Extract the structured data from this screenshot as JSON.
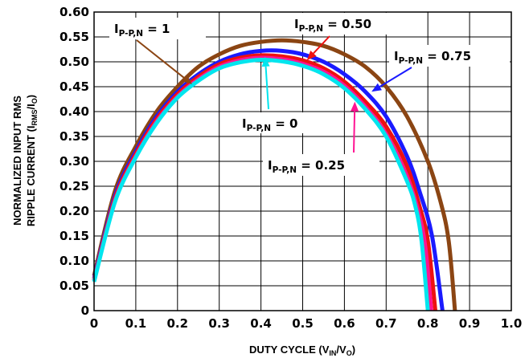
{
  "chart_data": {
    "type": "line",
    "title": "",
    "xlabel": {
      "main": "DUTY CYCLE (V",
      "sub1": "IN",
      "mid": "/V",
      "sub2": "O",
      "end": ")"
    },
    "ylabel": {
      "line1": "NORMALIZED INPUT RMS",
      "line2_main": "RIPPLE CURRENT (I",
      "line2_sub1": "RMS",
      "line2_mid": "/I",
      "line2_sub2": "O",
      "line2_end": ")"
    },
    "xlim": [
      0,
      1.0
    ],
    "ylim": [
      0,
      0.6
    ],
    "x_ticks": [
      "0",
      "0.1",
      "0.2",
      "0.3",
      "0.4",
      "0.5",
      "0.6",
      "0.7",
      "0.8",
      "0.9",
      "1.0"
    ],
    "y_ticks": [
      "0",
      "0.05",
      "0.10",
      "0.15",
      "0.20",
      "0.25",
      "0.30",
      "0.35",
      "0.40",
      "0.45",
      "0.50",
      "0.55",
      "0.60"
    ],
    "grid": true,
    "series": [
      {
        "color": "#8B4513",
        "x": [
          0,
          0.05,
          0.1,
          0.15,
          0.2,
          0.25,
          0.3,
          0.35,
          0.4,
          0.45,
          0.5,
          0.55,
          0.6,
          0.65,
          0.7,
          0.75,
          0.8,
          0.83,
          0.85,
          0.865
        ],
        "y": [
          0.07,
          0.24,
          0.33,
          0.4,
          0.45,
          0.49,
          0.515,
          0.532,
          0.54,
          0.543,
          0.54,
          0.532,
          0.515,
          0.49,
          0.45,
          0.39,
          0.3,
          0.22,
          0.14,
          0.0
        ]
      },
      {
        "color": "#1a1aff",
        "x": [
          0,
          0.05,
          0.1,
          0.15,
          0.2,
          0.25,
          0.3,
          0.35,
          0.4,
          0.45,
          0.5,
          0.55,
          0.6,
          0.65,
          0.7,
          0.75,
          0.78,
          0.81,
          0.835
        ],
        "y": [
          0.065,
          0.23,
          0.32,
          0.39,
          0.44,
          0.475,
          0.5,
          0.515,
          0.522,
          0.522,
          0.515,
          0.5,
          0.475,
          0.44,
          0.39,
          0.31,
          0.24,
          0.15,
          0.0
        ]
      },
      {
        "color": "#ee1111",
        "x": [
          0,
          0.05,
          0.1,
          0.15,
          0.2,
          0.25,
          0.3,
          0.35,
          0.4,
          0.45,
          0.5,
          0.55,
          0.6,
          0.65,
          0.7,
          0.75,
          0.78,
          0.8,
          0.818
        ],
        "y": [
          0.062,
          0.225,
          0.315,
          0.385,
          0.435,
          0.47,
          0.495,
          0.508,
          0.513,
          0.511,
          0.503,
          0.487,
          0.46,
          0.42,
          0.37,
          0.29,
          0.21,
          0.14,
          0.0
        ]
      },
      {
        "color": "#ff1493",
        "x": [
          0,
          0.05,
          0.1,
          0.15,
          0.2,
          0.25,
          0.3,
          0.35,
          0.4,
          0.45,
          0.5,
          0.55,
          0.6,
          0.65,
          0.7,
          0.75,
          0.78,
          0.795,
          0.808
        ],
        "y": [
          0.06,
          0.22,
          0.31,
          0.38,
          0.43,
          0.465,
          0.49,
          0.503,
          0.508,
          0.505,
          0.496,
          0.48,
          0.452,
          0.41,
          0.355,
          0.27,
          0.19,
          0.12,
          0.0
        ]
      },
      {
        "color": "#00e5ee",
        "x": [
          0,
          0.05,
          0.1,
          0.15,
          0.2,
          0.25,
          0.3,
          0.35,
          0.4,
          0.45,
          0.5,
          0.55,
          0.6,
          0.65,
          0.7,
          0.75,
          0.77,
          0.785,
          0.8
        ],
        "y": [
          0.058,
          0.218,
          0.308,
          0.377,
          0.428,
          0.462,
          0.487,
          0.499,
          0.504,
          0.501,
          0.492,
          0.475,
          0.447,
          0.405,
          0.35,
          0.26,
          0.21,
          0.14,
          0.0
        ]
      }
    ],
    "annotations": [
      {
        "name": "annotation-ipp-1",
        "color": "#8B4513",
        "main": "I",
        "sub": "P-P,N",
        "rest": " = 1",
        "point": [
          0.235,
          0.455
        ]
      },
      {
        "name": "annotation-ipp-050",
        "color": "#ee1111",
        "main": "I",
        "sub": "P-P,N",
        "rest": " = 0.50",
        "point": [
          0.51,
          0.503
        ]
      },
      {
        "name": "annotation-ipp-075",
        "color": "#1a1aff",
        "main": "I",
        "sub": "P-P,N",
        "rest": " = 0.75",
        "point": [
          0.665,
          0.44
        ]
      },
      {
        "name": "annotation-ipp-0",
        "color": "#00e5ee",
        "main": "I",
        "sub": "P-P,N",
        "rest": " = 0",
        "point": [
          0.41,
          0.51
        ]
      },
      {
        "name": "annotation-ipp-025",
        "color": "#ff1493",
        "main": "I",
        "sub": "P-P,N",
        "rest": " = 0.25",
        "point": [
          0.625,
          0.42
        ]
      }
    ]
  }
}
